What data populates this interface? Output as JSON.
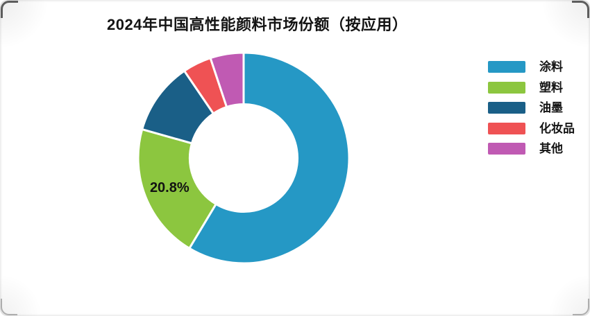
{
  "chart_data": {
    "type": "pie",
    "variant": "donut",
    "title": "2024年中国高性能颜料市场份额（按应用）",
    "unit": "%",
    "start_angle_deg": 0,
    "direction": "clockwise",
    "inner_radius_ratio": 0.51,
    "legend_position": "right",
    "grid": false,
    "series": [
      {
        "name": "涂料",
        "value": 58.6,
        "color": "#2598c5"
      },
      {
        "name": "塑料",
        "value": 20.8,
        "color": "#8cc63f",
        "label": "20.8%"
      },
      {
        "name": "油墨",
        "value": 11.1,
        "color": "#1a5f87"
      },
      {
        "name": "化妆品",
        "value": 4.4,
        "color": "#ef5254"
      },
      {
        "name": "其他",
        "value": 5.1,
        "color": "#c05ab3"
      }
    ]
  },
  "colors": {
    "background": "#ffffff",
    "title_text": "#141414",
    "legend_text": "#141414",
    "slice_gap": "#ffffff",
    "slice_label_text": "#121212"
  }
}
